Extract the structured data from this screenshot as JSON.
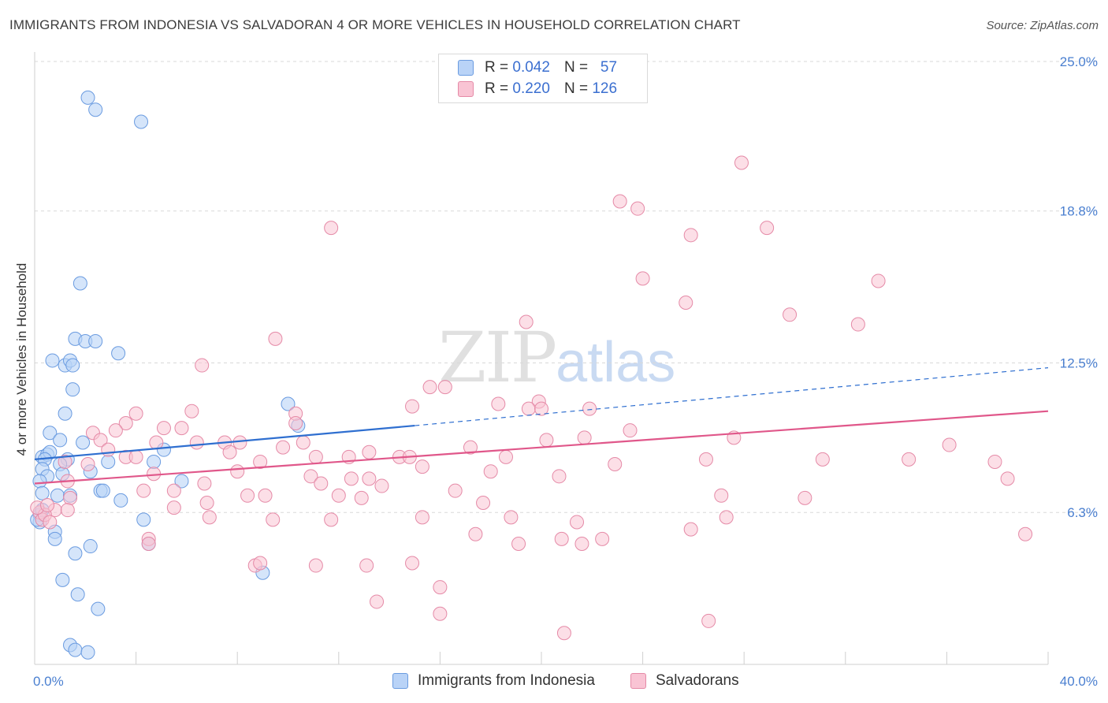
{
  "title": "IMMIGRANTS FROM INDONESIA VS SALVADORAN 4 OR MORE VEHICLES IN HOUSEHOLD CORRELATION CHART",
  "source": "Source: ZipAtlas.com",
  "watermark": {
    "zip": "ZIP",
    "atlas": "atlas"
  },
  "legend": {
    "rows": [
      {
        "r_label": "R =",
        "r_value": "0.042",
        "n_label": "N =",
        "n_value": "57"
      },
      {
        "r_label": "R =",
        "r_value": "0.220",
        "n_label": "N =",
        "n_value": "126"
      }
    ]
  },
  "colors": {
    "series1_fill": "#b9d3f7",
    "series1_stroke": "#6a9be0",
    "series1_line": "#2f6fd0",
    "series2_fill": "#f9c4d4",
    "series2_stroke": "#e58aa7",
    "series2_line": "#e0578a",
    "grid": "#d9d9d9",
    "axis_label": "#4a7fd0"
  },
  "chart_data": {
    "type": "scatter",
    "title": "IMMIGRANTS FROM INDONESIA VS SALVADORAN 4 OR MORE VEHICLES IN HOUSEHOLD CORRELATION CHART",
    "xlabel": "",
    "ylabel": "4 or more Vehicles in Household",
    "xlim": [
      0,
      40
    ],
    "ylim": [
      0,
      26
    ],
    "x_tick_labels": [
      {
        "value": 0,
        "label": "0.0%"
      },
      {
        "value": 40,
        "label": "40.0%"
      }
    ],
    "y_tick_labels": [
      {
        "value": 25.0,
        "label": "25.0%"
      },
      {
        "value": 18.8,
        "label": "18.8%"
      },
      {
        "value": 12.5,
        "label": "12.5%"
      },
      {
        "value": 6.3,
        "label": "6.3%"
      }
    ],
    "series": [
      {
        "name": "Immigrants from Indonesia",
        "r": 0.042,
        "n": 57,
        "trend_solid": [
          [
            0,
            8.5
          ],
          [
            15,
            9.9
          ]
        ],
        "trend_dashed": [
          [
            15,
            9.9
          ],
          [
            40,
            12.3
          ]
        ],
        "points": [
          [
            2.1,
            23.5
          ],
          [
            2.4,
            23.0
          ],
          [
            4.2,
            22.5
          ],
          [
            1.8,
            15.8
          ],
          [
            1.6,
            13.5
          ],
          [
            2.0,
            13.4
          ],
          [
            2.4,
            13.4
          ],
          [
            3.3,
            12.9
          ],
          [
            0.7,
            12.6
          ],
          [
            1.2,
            12.4
          ],
          [
            1.4,
            12.6
          ],
          [
            1.5,
            12.4
          ],
          [
            1.5,
            11.4
          ],
          [
            1.2,
            10.4
          ],
          [
            10.0,
            10.8
          ],
          [
            10.4,
            9.9
          ],
          [
            0.6,
            9.6
          ],
          [
            1.0,
            9.3
          ],
          [
            1.9,
            9.2
          ],
          [
            5.1,
            8.9
          ],
          [
            0.3,
            8.6
          ],
          [
            0.5,
            8.7
          ],
          [
            0.6,
            8.8
          ],
          [
            0.4,
            8.5
          ],
          [
            1.3,
            8.5
          ],
          [
            1.0,
            8.3
          ],
          [
            2.9,
            8.4
          ],
          [
            4.7,
            8.4
          ],
          [
            0.3,
            8.1
          ],
          [
            2.2,
            8.0
          ],
          [
            1.1,
            7.9
          ],
          [
            0.5,
            7.8
          ],
          [
            0.2,
            7.6
          ],
          [
            5.8,
            7.6
          ],
          [
            2.6,
            7.2
          ],
          [
            2.7,
            7.2
          ],
          [
            0.3,
            7.1
          ],
          [
            0.9,
            7.0
          ],
          [
            1.4,
            7.0
          ],
          [
            3.4,
            6.8
          ],
          [
            0.2,
            6.2
          ],
          [
            4.3,
            6.0
          ],
          [
            0.2,
            5.9
          ],
          [
            0.8,
            5.5
          ],
          [
            0.8,
            5.2
          ],
          [
            4.5,
            5.0
          ],
          [
            2.2,
            4.9
          ],
          [
            1.6,
            4.6
          ],
          [
            9.0,
            3.8
          ],
          [
            1.1,
            3.5
          ],
          [
            1.7,
            2.9
          ],
          [
            2.5,
            2.3
          ],
          [
            1.4,
            0.8
          ],
          [
            1.6,
            0.6
          ],
          [
            2.1,
            0.5
          ],
          [
            0.1,
            6.0
          ],
          [
            0.3,
            6.4
          ]
        ]
      },
      {
        "name": "Salvadorans",
        "r": 0.22,
        "n": 126,
        "trend_solid": [
          [
            0,
            7.5
          ],
          [
            40,
            10.5
          ]
        ],
        "points": [
          [
            27.9,
            20.8
          ],
          [
            23.1,
            19.2
          ],
          [
            23.8,
            18.9
          ],
          [
            11.7,
            18.1
          ],
          [
            28.9,
            18.1
          ],
          [
            25.9,
            17.8
          ],
          [
            24.0,
            16.0
          ],
          [
            33.3,
            15.9
          ],
          [
            25.7,
            15.0
          ],
          [
            29.8,
            14.5
          ],
          [
            32.5,
            14.1
          ],
          [
            19.4,
            14.2
          ],
          [
            9.5,
            13.5
          ],
          [
            6.6,
            12.4
          ],
          [
            15.6,
            11.5
          ],
          [
            16.2,
            11.5
          ],
          [
            14.9,
            10.7
          ],
          [
            18.3,
            10.8
          ],
          [
            19.9,
            10.9
          ],
          [
            19.5,
            10.6
          ],
          [
            20.0,
            10.6
          ],
          [
            21.9,
            10.6
          ],
          [
            6.2,
            10.5
          ],
          [
            4.0,
            10.4
          ],
          [
            10.3,
            10.4
          ],
          [
            3.6,
            10.0
          ],
          [
            10.3,
            10.0
          ],
          [
            3.2,
            9.7
          ],
          [
            5.1,
            9.8
          ],
          [
            5.8,
            9.8
          ],
          [
            2.3,
            9.6
          ],
          [
            23.5,
            9.7
          ],
          [
            21.7,
            9.4
          ],
          [
            27.6,
            9.4
          ],
          [
            20.2,
            9.3
          ],
          [
            2.6,
            9.3
          ],
          [
            4.8,
            9.2
          ],
          [
            6.4,
            9.2
          ],
          [
            7.5,
            9.2
          ],
          [
            8.1,
            9.2
          ],
          [
            10.6,
            9.2
          ],
          [
            9.8,
            9.0
          ],
          [
            17.2,
            9.0
          ],
          [
            36.1,
            9.1
          ],
          [
            2.9,
            8.9
          ],
          [
            7.7,
            8.8
          ],
          [
            13.2,
            8.8
          ],
          [
            12.4,
            8.6
          ],
          [
            14.4,
            8.6
          ],
          [
            14.8,
            8.6
          ],
          [
            31.1,
            8.5
          ],
          [
            34.5,
            8.5
          ],
          [
            37.9,
            8.4
          ],
          [
            3.6,
            8.6
          ],
          [
            4.0,
            8.6
          ],
          [
            8.9,
            8.4
          ],
          [
            26.5,
            8.5
          ],
          [
            18.6,
            8.6
          ],
          [
            11.1,
            8.6
          ],
          [
            1.2,
            8.4
          ],
          [
            2.1,
            8.3
          ],
          [
            15.3,
            8.2
          ],
          [
            22.9,
            8.3
          ],
          [
            18.0,
            8.0
          ],
          [
            8.0,
            8.0
          ],
          [
            4.7,
            7.9
          ],
          [
            10.9,
            7.8
          ],
          [
            12.5,
            7.7
          ],
          [
            13.2,
            7.7
          ],
          [
            20.7,
            7.8
          ],
          [
            38.4,
            7.7
          ],
          [
            1.3,
            7.6
          ],
          [
            6.7,
            7.5
          ],
          [
            11.3,
            7.5
          ],
          [
            13.7,
            7.4
          ],
          [
            16.6,
            7.2
          ],
          [
            4.3,
            7.2
          ],
          [
            5.5,
            7.2
          ],
          [
            8.4,
            7.0
          ],
          [
            9.1,
            7.0
          ],
          [
            12.0,
            7.0
          ],
          [
            12.9,
            6.9
          ],
          [
            27.1,
            7.0
          ],
          [
            30.4,
            6.9
          ],
          [
            1.4,
            6.9
          ],
          [
            17.7,
            6.7
          ],
          [
            6.8,
            6.7
          ],
          [
            5.5,
            6.5
          ],
          [
            0.8,
            6.4
          ],
          [
            1.3,
            6.4
          ],
          [
            15.3,
            6.1
          ],
          [
            18.8,
            6.1
          ],
          [
            6.9,
            6.1
          ],
          [
            9.4,
            6.0
          ],
          [
            11.7,
            6.0
          ],
          [
            21.4,
            5.9
          ],
          [
            27.3,
            6.1
          ],
          [
            25.9,
            5.6
          ],
          [
            17.4,
            5.4
          ],
          [
            39.1,
            5.4
          ],
          [
            22.4,
            5.2
          ],
          [
            19.1,
            5.0
          ],
          [
            20.8,
            5.2
          ],
          [
            21.6,
            5.0
          ],
          [
            4.5,
            5.2
          ],
          [
            4.5,
            5.0
          ],
          [
            8.7,
            4.1
          ],
          [
            8.9,
            4.2
          ],
          [
            11.1,
            4.1
          ],
          [
            13.1,
            4.1
          ],
          [
            14.9,
            4.2
          ],
          [
            16.0,
            3.2
          ],
          [
            13.5,
            2.6
          ],
          [
            16.0,
            2.1
          ],
          [
            26.6,
            1.8
          ],
          [
            20.9,
            1.3
          ],
          [
            0.2,
            6.3
          ],
          [
            0.3,
            6.0
          ],
          [
            0.4,
            6.2
          ],
          [
            0.6,
            5.9
          ],
          [
            0.1,
            6.5
          ],
          [
            0.5,
            6.6
          ]
        ]
      }
    ]
  },
  "bottom_legend": [
    "Immigrants from Indonesia",
    "Salvadorans"
  ]
}
